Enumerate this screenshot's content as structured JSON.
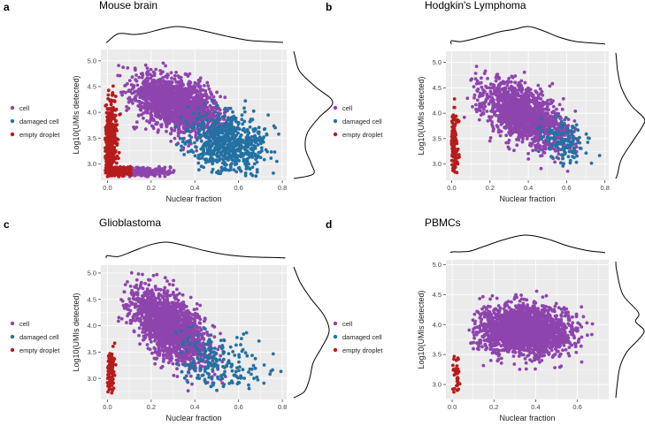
{
  "figure": {
    "legend_labels": [
      "cell",
      "damaged cell",
      "empty droplet"
    ],
    "legend_colors": [
      "#8E44AD",
      "#2471A3",
      "#B71C1C"
    ],
    "panel_bg": "#EBEBEB",
    "grid_color": "#FFFFFF"
  },
  "chart_data": [
    {
      "type": "scatter",
      "panel_letter": "a",
      "title": "Mouse brain",
      "xlabel": "Nuclear fraction",
      "ylabel": "Log10(UMIs detected)",
      "xlim": [
        -0.03,
        0.82
      ],
      "ylim": [
        2.68,
        5.22
      ],
      "xticks": [
        0.0,
        0.2,
        0.4,
        0.6,
        0.8
      ],
      "xtick_labels": [
        "0.0",
        "0.2",
        "0.4",
        "0.6",
        "0.8"
      ],
      "yticks": [
        3.0,
        3.5,
        4.0,
        4.5,
        5.0
      ],
      "ytick_labels": [
        "3.0",
        "3.5",
        "4.0",
        "4.5",
        "5.0"
      ],
      "legend": [
        "cell",
        "damaged cell",
        "empty droplet"
      ],
      "clusters": [
        {
          "label": "cell",
          "n": 1700,
          "cx": 0.32,
          "cy": 4.15,
          "sx": 0.1,
          "sy": 0.28,
          "rho": -0.45,
          "xmin": 0.03,
          "xmax": 0.6,
          "ymin": 2.8,
          "ymax": 5.15
        },
        {
          "label": "cell",
          "n": 220,
          "cx": 0.15,
          "cy": 2.85,
          "sx": 0.07,
          "sy": 0.05,
          "rho": 0.0,
          "xmin": 0.06,
          "xmax": 0.32,
          "ymin": 2.75,
          "ymax": 2.95
        },
        {
          "label": "damaged cell",
          "n": 650,
          "cx": 0.55,
          "cy": 3.4,
          "sx": 0.09,
          "sy": 0.3,
          "rho": -0.2,
          "xmin": 0.3,
          "xmax": 0.8,
          "ymin": 2.75,
          "ymax": 4.3
        },
        {
          "label": "empty droplet",
          "n": 420,
          "cx": 0.01,
          "cy": 3.3,
          "sx": 0.015,
          "sy": 0.45,
          "rho": 0.0,
          "xmin": -0.01,
          "xmax": 0.09,
          "ymin": 2.75,
          "ymax": 4.55
        },
        {
          "label": "empty droplet",
          "n": 140,
          "cx": 0.05,
          "cy": 2.85,
          "sx": 0.03,
          "sy": 0.05,
          "rho": 0.0,
          "xmin": 0.0,
          "xmax": 0.12,
          "ymin": 2.75,
          "ymax": 2.95
        }
      ],
      "density_x": [
        [
          0,
          0.04
        ],
        [
          0.05,
          0.55
        ],
        [
          0.12,
          0.5
        ],
        [
          0.18,
          0.6
        ],
        [
          0.25,
          0.85
        ],
        [
          0.32,
          1.0
        ],
        [
          0.4,
          0.85
        ],
        [
          0.48,
          0.6
        ],
        [
          0.56,
          0.35
        ],
        [
          0.65,
          0.12
        ],
        [
          0.75,
          0.04
        ]
      ],
      "density_y": [
        [
          2.8,
          0.5
        ],
        [
          3.0,
          0.45
        ],
        [
          3.3,
          0.3
        ],
        [
          3.6,
          0.35
        ],
        [
          3.9,
          0.65
        ],
        [
          4.2,
          1.0
        ],
        [
          4.5,
          0.55
        ],
        [
          4.8,
          0.15
        ],
        [
          5.1,
          0.03
        ]
      ]
    },
    {
      "type": "scatter",
      "panel_letter": "b",
      "title": "Hodgkin's Lymphoma",
      "xlabel": "Nuclear fraction",
      "ylabel": "Log10(UMIs detected)",
      "xlim": [
        -0.03,
        0.82
      ],
      "ylim": [
        2.68,
        5.22
      ],
      "xticks": [
        0.0,
        0.2,
        0.4,
        0.6,
        0.8
      ],
      "xtick_labels": [
        "0.0",
        "0.2",
        "0.4",
        "0.6",
        "0.8"
      ],
      "yticks": [
        3.0,
        3.5,
        4.0,
        4.5,
        5.0
      ],
      "ytick_labels": [
        "3.0",
        "3.5",
        "4.0",
        "4.5",
        "5.0"
      ],
      "legend": [
        "cell",
        "damaged cell",
        "empty droplet"
      ],
      "clusters": [
        {
          "label": "cell",
          "n": 1500,
          "cx": 0.38,
          "cy": 3.95,
          "sx": 0.11,
          "sy": 0.32,
          "rho": -0.55,
          "xmin": 0.06,
          "xmax": 0.66,
          "ymin": 2.8,
          "ymax": 5.1
        },
        {
          "label": "damaged cell",
          "n": 130,
          "cx": 0.58,
          "cy": 3.45,
          "sx": 0.07,
          "sy": 0.22,
          "rho": -0.2,
          "xmin": 0.42,
          "xmax": 0.78,
          "ymin": 2.9,
          "ymax": 3.95
        },
        {
          "label": "empty droplet",
          "n": 120,
          "cx": 0.01,
          "cy": 3.4,
          "sx": 0.012,
          "sy": 0.35,
          "rho": 0.0,
          "xmin": 0.0,
          "xmax": 0.04,
          "ymin": 2.75,
          "ymax": 4.75
        }
      ],
      "density_x": [
        [
          0,
          0.2
        ],
        [
          0.05,
          0.15
        ],
        [
          0.15,
          0.4
        ],
        [
          0.25,
          0.7
        ],
        [
          0.33,
          0.85
        ],
        [
          0.4,
          1.0
        ],
        [
          0.48,
          0.75
        ],
        [
          0.56,
          0.4
        ],
        [
          0.65,
          0.15
        ],
        [
          0.78,
          0.03
        ]
      ],
      "density_y": [
        [
          2.8,
          0.06
        ],
        [
          3.1,
          0.2
        ],
        [
          3.45,
          0.6
        ],
        [
          3.75,
          0.95
        ],
        [
          3.9,
          1.0
        ],
        [
          4.15,
          0.55
        ],
        [
          4.5,
          0.2
        ],
        [
          4.85,
          0.06
        ],
        [
          5.1,
          0.02
        ]
      ]
    },
    {
      "type": "scatter",
      "panel_letter": "c",
      "title": "Glioblastoma",
      "xlabel": "Nuclear fraction",
      "ylabel": "Log10(UMIs detected)",
      "xlim": [
        -0.03,
        0.82
      ],
      "ylim": [
        2.6,
        5.15
      ],
      "xticks": [
        0.0,
        0.2,
        0.4,
        0.6,
        0.8
      ],
      "xtick_labels": [
        "0.0",
        "0.2",
        "0.4",
        "0.6",
        "0.8"
      ],
      "yticks": [
        3.0,
        3.5,
        4.0,
        4.5,
        5.0
      ],
      "ytick_labels": [
        "3.0",
        "3.5",
        "4.0",
        "4.5",
        "5.0"
      ],
      "legend": [
        "cell",
        "damaged cell",
        "empty droplet"
      ],
      "clusters": [
        {
          "label": "cell",
          "n": 1700,
          "cx": 0.28,
          "cy": 4.0,
          "sx": 0.09,
          "sy": 0.38,
          "rho": -0.6,
          "xmin": 0.05,
          "xmax": 0.55,
          "ymin": 2.75,
          "ymax": 5.05
        },
        {
          "label": "damaged cell",
          "n": 200,
          "cx": 0.5,
          "cy": 3.3,
          "sx": 0.1,
          "sy": 0.3,
          "rho": -0.3,
          "xmin": 0.3,
          "xmax": 0.8,
          "ymin": 2.75,
          "ymax": 4.0
        },
        {
          "label": "empty droplet",
          "n": 110,
          "cx": 0.01,
          "cy": 3.1,
          "sx": 0.012,
          "sy": 0.22,
          "rho": 0.0,
          "xmin": 0.0,
          "xmax": 0.04,
          "ymin": 2.72,
          "ymax": 4.6
        }
      ],
      "density_x": [
        [
          0,
          0.15
        ],
        [
          0.05,
          0.1
        ],
        [
          0.12,
          0.45
        ],
        [
          0.2,
          0.85
        ],
        [
          0.27,
          1.0
        ],
        [
          0.35,
          0.8
        ],
        [
          0.45,
          0.45
        ],
        [
          0.55,
          0.2
        ],
        [
          0.65,
          0.08
        ],
        [
          0.8,
          0.02
        ]
      ],
      "density_y": [
        [
          2.75,
          0.3
        ],
        [
          3.0,
          0.45
        ],
        [
          3.3,
          0.55
        ],
        [
          3.6,
          0.8
        ],
        [
          3.9,
          1.0
        ],
        [
          4.2,
          0.85
        ],
        [
          4.5,
          0.5
        ],
        [
          4.8,
          0.2
        ],
        [
          5.05,
          0.04
        ]
      ]
    },
    {
      "type": "scatter",
      "panel_letter": "d",
      "title": "PBMCs",
      "xlabel": "Nuclear fraction",
      "ylabel": "Log10(UMIs detected)",
      "xlim": [
        -0.03,
        0.75
      ],
      "ylim": [
        2.75,
        5.08
      ],
      "xticks": [
        0.0,
        0.2,
        0.4,
        0.6
      ],
      "xtick_labels": [
        "0.0",
        "0.2",
        "0.4",
        "0.6"
      ],
      "yticks": [
        3.0,
        3.5,
        4.0,
        4.5,
        5.0
      ],
      "ytick_labels": [
        "3.0",
        "3.5",
        "4.0",
        "4.5",
        "5.0"
      ],
      "legend": [
        "cell",
        "damaged cell",
        "empty droplet"
      ],
      "clusters": [
        {
          "label": "cell",
          "n": 2200,
          "cx": 0.35,
          "cy": 3.9,
          "sx": 0.11,
          "sy": 0.2,
          "rho": -0.1,
          "xmin": 0.08,
          "xmax": 0.68,
          "ymin": 3.05,
          "ymax": 4.95
        },
        {
          "label": "empty droplet",
          "n": 35,
          "cx": 0.02,
          "cy": 3.15,
          "sx": 0.01,
          "sy": 0.2,
          "rho": 0.0,
          "xmin": 0.0,
          "xmax": 0.045,
          "ymin": 2.85,
          "ymax": 3.75
        }
      ],
      "density_x": [
        [
          0,
          0.05
        ],
        [
          0.08,
          0.08
        ],
        [
          0.15,
          0.35
        ],
        [
          0.25,
          0.75
        ],
        [
          0.35,
          1.0
        ],
        [
          0.45,
          0.8
        ],
        [
          0.55,
          0.4
        ],
        [
          0.65,
          0.12
        ],
        [
          0.72,
          0.03
        ]
      ],
      "density_y": [
        [
          3.0,
          0.05
        ],
        [
          3.3,
          0.15
        ],
        [
          3.55,
          0.4
        ],
        [
          3.75,
          0.8
        ],
        [
          3.9,
          1.0
        ],
        [
          4.05,
          0.7
        ],
        [
          4.2,
          0.8
        ],
        [
          4.5,
          0.25
        ],
        [
          4.9,
          0.03
        ]
      ]
    }
  ]
}
